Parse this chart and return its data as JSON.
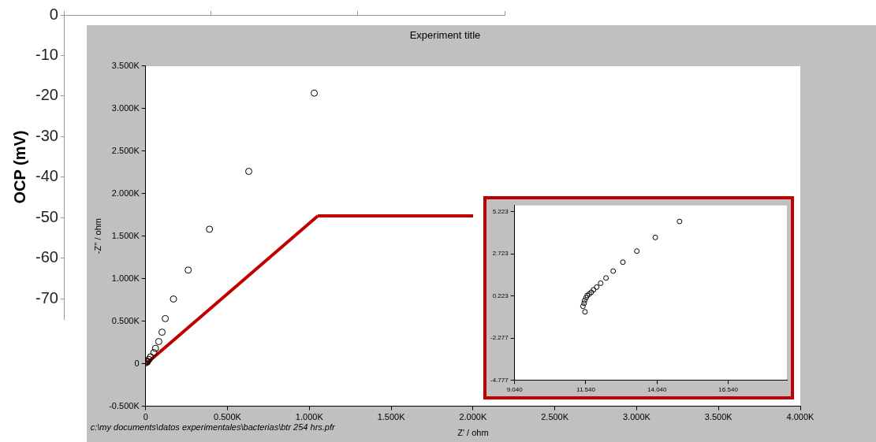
{
  "chart_data": [
    {
      "type": "line",
      "ylabel": "OCP (mV)",
      "categories": [
        null,
        null,
        null,
        null
      ],
      "ylim": [
        -75,
        0
      ],
      "yticks": [
        0,
        -10,
        -20,
        -30,
        -40,
        -50,
        -60,
        -70
      ],
      "tick_labels": "y",
      "grid": false,
      "legend": false,
      "values": [
        null,
        null,
        null,
        null
      ]
    },
    {
      "type": "scatter",
      "title": "Experiment title",
      "xlabel": "Z' / ohm",
      "ylabel": "-Z'' / ohm",
      "xlim": [
        0,
        4000
      ],
      "xticks": [
        0,
        {
          "value": 500,
          "label": "0.500K"
        },
        {
          "value": 1000,
          "label": "1.000K"
        },
        {
          "value": 1500,
          "label": "1.500K"
        },
        {
          "value": 2000,
          "label": "2.000K"
        },
        {
          "value": 2500,
          "label": "2.500K"
        },
        {
          "value": 3000,
          "label": "3.000K"
        },
        {
          "value": 3500,
          "label": "3.500K"
        },
        {
          "value": 4000,
          "label": "4.000K"
        }
      ],
      "ylim": [
        -500,
        3500
      ],
      "yticks": [
        {
          "value": -500,
          "label": "-0.500K"
        },
        0,
        {
          "value": 500,
          "label": "0.500K"
        },
        {
          "value": 1000,
          "label": "1.000K"
        },
        {
          "value": 1500,
          "label": "1.500K"
        },
        {
          "value": 2000,
          "label": "2.000K"
        },
        {
          "value": 2500,
          "label": "2.500K"
        },
        {
          "value": 3000,
          "label": "3.000K"
        },
        {
          "value": 3500,
          "label": "3.500K"
        }
      ],
      "grid": false,
      "legend": false,
      "marker": "circle",
      "annotations": [
        "c:\\my documents\\datos experimentales\\bacterias\\btr 254 hrs.pfr"
      ],
      "series": [
        {
          "color": "#000000",
          "x": [
            1030,
            630,
            390,
            260,
            170,
            120,
            100,
            80,
            60,
            50,
            30,
            20,
            10,
            10,
            0
          ],
          "values": [
            3180,
            2260,
            1580,
            1100,
            760,
            530,
            370,
            260,
            180,
            130,
            80,
            50,
            30,
            20,
            10
          ]
        }
      ]
    },
    {
      "type": "scatter",
      "xlim": [
        9.04,
        18.6
      ],
      "xticks": [
        {
          "value": 9.04,
          "label": "9.040"
        },
        {
          "value": 11.54,
          "label": "11.540"
        },
        {
          "value": 14.04,
          "label": "14.040"
        },
        {
          "value": 16.54,
          "label": "16.540"
        }
      ],
      "ylim": [
        -4.777,
        5.6
      ],
      "yticks": [
        -4.777,
        -2.277,
        0.223,
        2.723,
        5.223
      ],
      "grid": false,
      "legend": false,
      "marker": "circle",
      "series": [
        {
          "color": "#000000",
          "x": [
            14.83,
            13.98,
            13.33,
            12.84,
            12.5,
            12.25,
            12.06,
            11.92,
            11.81,
            11.73,
            11.66,
            11.59,
            11.55,
            11.5,
            11.48,
            11.44,
            11.51
          ],
          "values": [
            4.65,
            3.7,
            2.89,
            2.23,
            1.7,
            1.29,
            0.98,
            0.75,
            0.59,
            0.44,
            0.34,
            0.25,
            0.12,
            -0.04,
            -0.21,
            -0.39,
            -0.72
          ]
        }
      ]
    }
  ]
}
